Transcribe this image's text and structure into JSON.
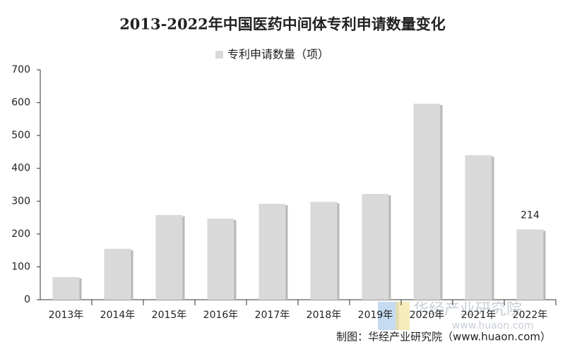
{
  "chart_data": {
    "type": "bar",
    "title": "2013-2022年中国医药中间体专利申请数量变化",
    "categories": [
      "2013年",
      "2014年",
      "2015年",
      "2016年",
      "2017年",
      "2018年",
      "2019年",
      "2020年",
      "2021年",
      "2022年"
    ],
    "series": [
      {
        "name": "专利申请数量（项）",
        "color": "#d9d9d9",
        "values": [
          69,
          155,
          258,
          247,
          292,
          298,
          322,
          597,
          440,
          214
        ],
        "value_labels": [
          null,
          null,
          null,
          null,
          null,
          null,
          null,
          null,
          null,
          "214"
        ]
      }
    ],
    "ylim": [
      0,
      700
    ],
    "yticks": [
      0,
      100,
      200,
      300,
      400,
      500,
      600,
      700
    ],
    "grid": false,
    "legend": "top",
    "source": "制图：华经产业研究院（www.huaon.com）",
    "watermark": "华经产业研究院",
    "watermark_url": "www.huaon.com"
  }
}
